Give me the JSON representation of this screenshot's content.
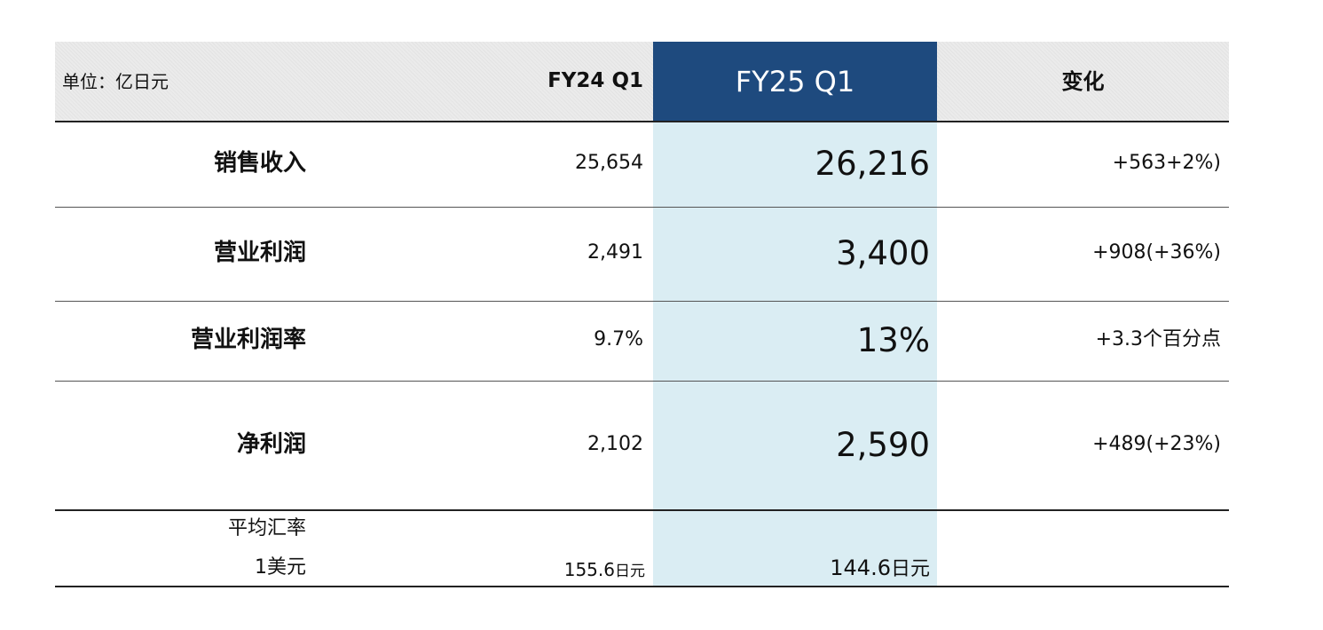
{
  "table": {
    "unit": "单位：亿日元",
    "columns": [
      "FY24 Q1",
      "FY25 Q1",
      "变化"
    ],
    "rows": [
      {
        "label": "销售收入",
        "cells": [
          "25,654",
          "26,216",
          "+563+2%)"
        ]
      },
      {
        "label": "营业利润",
        "cells": [
          "2,491",
          "3,400",
          "+908(+36%)"
        ]
      },
      {
        "label": "营业利润率",
        "cells": [
          "9.7%",
          "13%",
          "+3.3个百分点"
        ]
      },
      {
        "label": "净利润",
        "cells": [
          "2,102",
          "2,590",
          "+489(+23%)"
        ]
      }
    ],
    "fx": {
      "label": [
        "平均汇率",
        "1美元"
      ],
      "fy24": "155.6",
      "fy25": "144.6",
      "unit": "日元"
    }
  }
}
